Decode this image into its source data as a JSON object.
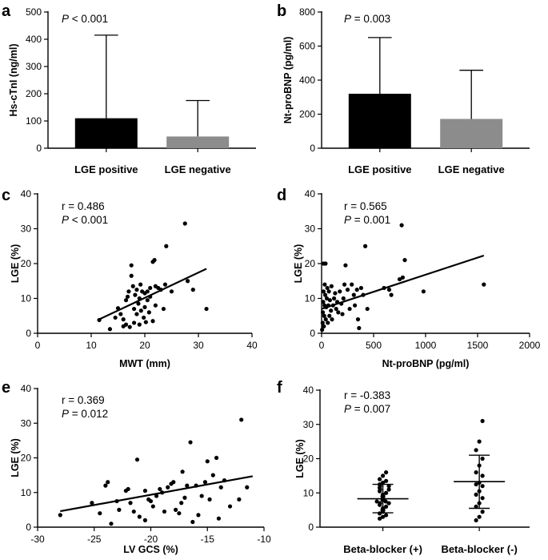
{
  "figure": {
    "panels": [
      "a",
      "b",
      "c",
      "d",
      "e",
      "f"
    ]
  },
  "chart_data": [
    {
      "id": "a",
      "type": "bar",
      "letter": "a",
      "ylabel": "Hs-cTnI (ng/ml)",
      "xlabel": "",
      "ylim": [
        0,
        500
      ],
      "yticks": [
        0,
        100,
        200,
        300,
        400,
        500
      ],
      "categories": [
        "LGE positive",
        "LGE negative"
      ],
      "values": [
        110,
        43
      ],
      "errors_upper": [
        415,
        175
      ],
      "bar_colors": [
        "#000000",
        "#8c8c8c"
      ],
      "stat_lines": [
        {
          "label": "P",
          "text": " < 0.001"
        }
      ]
    },
    {
      "id": "b",
      "type": "bar",
      "letter": "b",
      "ylabel": "Nt-proBNP (pg/ml)",
      "xlabel": "",
      "ylim": [
        0,
        800
      ],
      "yticks": [
        0,
        200,
        400,
        600,
        800
      ],
      "categories": [
        "LGE positive",
        "LGE negative"
      ],
      "values": [
        320,
        172
      ],
      "errors_upper": [
        650,
        458
      ],
      "bar_colors": [
        "#000000",
        "#8c8c8c"
      ],
      "stat_lines": [
        {
          "label": "P",
          "text": " = 0.003"
        }
      ]
    },
    {
      "id": "c",
      "type": "scatter",
      "letter": "c",
      "xlabel": "MWT (mm)",
      "ylabel": "LGE  (%)",
      "xlim": [
        0,
        40
      ],
      "ylim": [
        0,
        40
      ],
      "xticks": [
        0,
        10,
        20,
        30,
        40
      ],
      "yticks": [
        0,
        10,
        20,
        30,
        40
      ],
      "stat_lines": [
        {
          "label": "",
          "text": "r = 0.486"
        },
        {
          "label": "P",
          "text": " < 0.001"
        }
      ],
      "fit_line": [
        [
          11.5,
          4.0
        ],
        [
          31.5,
          18.5
        ]
      ],
      "points": [
        [
          11.5,
          3.8
        ],
        [
          13.5,
          1.2
        ],
        [
          14.5,
          4.5
        ],
        [
          15,
          7.2
        ],
        [
          15.5,
          5.5
        ],
        [
          16,
          4
        ],
        [
          16,
          2
        ],
        [
          16.5,
          9.5
        ],
        [
          16.5,
          2.5
        ],
        [
          16.8,
          10.5
        ],
        [
          17,
          12
        ],
        [
          17.2,
          1.8
        ],
        [
          17.5,
          16.5
        ],
        [
          17.5,
          19.5
        ],
        [
          17.8,
          13.5
        ],
        [
          18,
          3
        ],
        [
          18,
          7
        ],
        [
          18.2,
          11
        ],
        [
          18.5,
          5.5
        ],
        [
          18.5,
          12.5
        ],
        [
          18.8,
          8.5
        ],
        [
          19,
          2.5
        ],
        [
          19,
          10
        ],
        [
          19.2,
          14
        ],
        [
          19.3,
          6.5
        ],
        [
          19.5,
          12
        ],
        [
          19.8,
          4.5
        ],
        [
          20,
          7.5
        ],
        [
          20,
          11.5
        ],
        [
          20.2,
          3.2
        ],
        [
          20.5,
          9.5
        ],
        [
          20.5,
          12
        ],
        [
          20.8,
          6
        ],
        [
          21,
          13
        ],
        [
          21,
          10.5
        ],
        [
          21.5,
          3.5
        ],
        [
          21.5,
          20.5
        ],
        [
          21.8,
          21
        ],
        [
          22,
          8
        ],
        [
          22,
          13.5
        ],
        [
          22.5,
          13
        ],
        [
          23,
          12.5
        ],
        [
          23.5,
          7
        ],
        [
          23.8,
          14
        ],
        [
          24,
          25
        ],
        [
          25,
          12
        ],
        [
          27.5,
          31.5
        ],
        [
          28,
          15
        ],
        [
          29,
          12.5
        ],
        [
          31.5,
          7
        ]
      ]
    },
    {
      "id": "d",
      "type": "scatter",
      "letter": "d",
      "xlabel": "Nt-proBNP (pg/ml)",
      "ylabel": "LGE  (%)",
      "xlim": [
        0,
        2000
      ],
      "ylim": [
        0,
        40
      ],
      "xticks": [
        0,
        500,
        1000,
        1500,
        2000
      ],
      "yticks": [
        0,
        10,
        20,
        30,
        40
      ],
      "stat_lines": [
        {
          "label": "",
          "text": "r = 0.565"
        },
        {
          "label": "P",
          "text": " = 0.001"
        }
      ],
      "fit_line": [
        [
          0,
          7.0
        ],
        [
          1560,
          22.3
        ]
      ],
      "points": [
        [
          5,
          1
        ],
        [
          10,
          3
        ],
        [
          12,
          6
        ],
        [
          15,
          9
        ],
        [
          18,
          12
        ],
        [
          20,
          20
        ],
        [
          22,
          2
        ],
        [
          25,
          5
        ],
        [
          28,
          8
        ],
        [
          30,
          14
        ],
        [
          35,
          11
        ],
        [
          38,
          20
        ],
        [
          40,
          4
        ],
        [
          45,
          7.5
        ],
        [
          50,
          10
        ],
        [
          55,
          13
        ],
        [
          60,
          3
        ],
        [
          65,
          8
        ],
        [
          70,
          12
        ],
        [
          75,
          5
        ],
        [
          80,
          9.5
        ],
        [
          90,
          6.5
        ],
        [
          95,
          13.5
        ],
        [
          100,
          4
        ],
        [
          110,
          8
        ],
        [
          120,
          10
        ],
        [
          130,
          11.5
        ],
        [
          140,
          7
        ],
        [
          150,
          9
        ],
        [
          160,
          6
        ],
        [
          175,
          12
        ],
        [
          190,
          8.5
        ],
        [
          200,
          5.5
        ],
        [
          210,
          10
        ],
        [
          220,
          14
        ],
        [
          230,
          19.5
        ],
        [
          250,
          12.5
        ],
        [
          270,
          7
        ],
        [
          290,
          14
        ],
        [
          310,
          11
        ],
        [
          320,
          8
        ],
        [
          340,
          12.5
        ],
        [
          350,
          4
        ],
        [
          360,
          1.5
        ],
        [
          380,
          13
        ],
        [
          400,
          11
        ],
        [
          420,
          25
        ],
        [
          440,
          7
        ],
        [
          600,
          13
        ],
        [
          650,
          12.5
        ],
        [
          670,
          11
        ],
        [
          750,
          15.5
        ],
        [
          770,
          31
        ],
        [
          780,
          16
        ],
        [
          800,
          21
        ],
        [
          980,
          12
        ],
        [
          1560,
          14
        ]
      ]
    },
    {
      "id": "e",
      "type": "scatter",
      "letter": "e",
      "xlabel": "LV GCS (%)",
      "ylabel": "LGE  (%)",
      "xlim": [
        -30,
        -10
      ],
      "ylim": [
        0,
        40
      ],
      "xticks": [
        -30,
        -25,
        -20,
        -15,
        -10
      ],
      "yticks": [
        0,
        10,
        20,
        30,
        40
      ],
      "stat_lines": [
        {
          "label": "",
          "text": "r = 0.369"
        },
        {
          "label": "P",
          "text": " = 0.012"
        }
      ],
      "fit_line": [
        [
          -28,
          4.6
        ],
        [
          -11,
          14.7
        ]
      ],
      "points": [
        [
          -28,
          3.5
        ],
        [
          -25.2,
          7
        ],
        [
          -24.5,
          4
        ],
        [
          -24,
          12
        ],
        [
          -23.8,
          13
        ],
        [
          -23.5,
          1
        ],
        [
          -23,
          7.5
        ],
        [
          -22.8,
          5
        ],
        [
          -22.2,
          10.5
        ],
        [
          -22,
          11
        ],
        [
          -21.8,
          7
        ],
        [
          -21.5,
          4.5
        ],
        [
          -21.2,
          19.5
        ],
        [
          -21,
          3
        ],
        [
          -20.5,
          2
        ],
        [
          -20.5,
          10.5
        ],
        [
          -20.2,
          8
        ],
        [
          -20,
          7.5
        ],
        [
          -19.8,
          6
        ],
        [
          -19.5,
          9
        ],
        [
          -19.2,
          11
        ],
        [
          -19,
          10
        ],
        [
          -18.8,
          4.5
        ],
        [
          -18.5,
          11.5
        ],
        [
          -18.2,
          12.5
        ],
        [
          -18,
          13
        ],
        [
          -17.8,
          5
        ],
        [
          -17.5,
          4
        ],
        [
          -17.3,
          7
        ],
        [
          -17.2,
          16
        ],
        [
          -17,
          8.5
        ],
        [
          -16.8,
          12
        ],
        [
          -16.5,
          24.5
        ],
        [
          -16.3,
          1.5
        ],
        [
          -16,
          12
        ],
        [
          -15.8,
          3.5
        ],
        [
          -15.5,
          9
        ],
        [
          -15.2,
          13
        ],
        [
          -15,
          19
        ],
        [
          -14.8,
          8
        ],
        [
          -14.5,
          15
        ],
        [
          -14.2,
          20
        ],
        [
          -14,
          2.5
        ],
        [
          -13.8,
          11.5
        ],
        [
          -13.5,
          13.5
        ],
        [
          -13,
          6
        ],
        [
          -12.2,
          8
        ],
        [
          -12,
          31
        ],
        [
          -11.5,
          11.5
        ]
      ]
    },
    {
      "id": "f",
      "type": "scatter",
      "letter": "f",
      "xlabel": "",
      "ylabel": "LGE  (%)",
      "ylim": [
        0,
        40
      ],
      "yticks": [
        0,
        10,
        20,
        30,
        40
      ],
      "categories": [
        "Beta-blocker (+)",
        "Beta-blocker (-)"
      ],
      "stat_lines": [
        {
          "label": "",
          "text": "r = -0.383"
        },
        {
          "label": "P",
          "text": " = 0.007"
        }
      ],
      "group_summary": [
        {
          "mean": 8.3,
          "upper": 12.5,
          "lower": 4.2
        },
        {
          "mean": 13.3,
          "upper": 21.0,
          "lower": 5.5
        }
      ],
      "groups": [
        [
          2.5,
          3,
          3.5,
          4,
          4.5,
          5,
          5,
          5.5,
          6,
          6.5,
          7,
          7,
          7.5,
          7.5,
          8,
          8,
          8.5,
          9,
          9,
          9.5,
          10,
          10.5,
          11,
          11,
          11.5,
          12,
          12,
          12.5,
          13,
          13.5,
          14,
          15,
          16
        ],
        [
          2,
          3,
          4.5,
          6,
          7,
          8.5,
          9.5,
          10.5,
          12,
          12.5,
          13,
          15,
          16,
          18,
          20,
          22.5,
          25,
          31
        ]
      ]
    }
  ]
}
